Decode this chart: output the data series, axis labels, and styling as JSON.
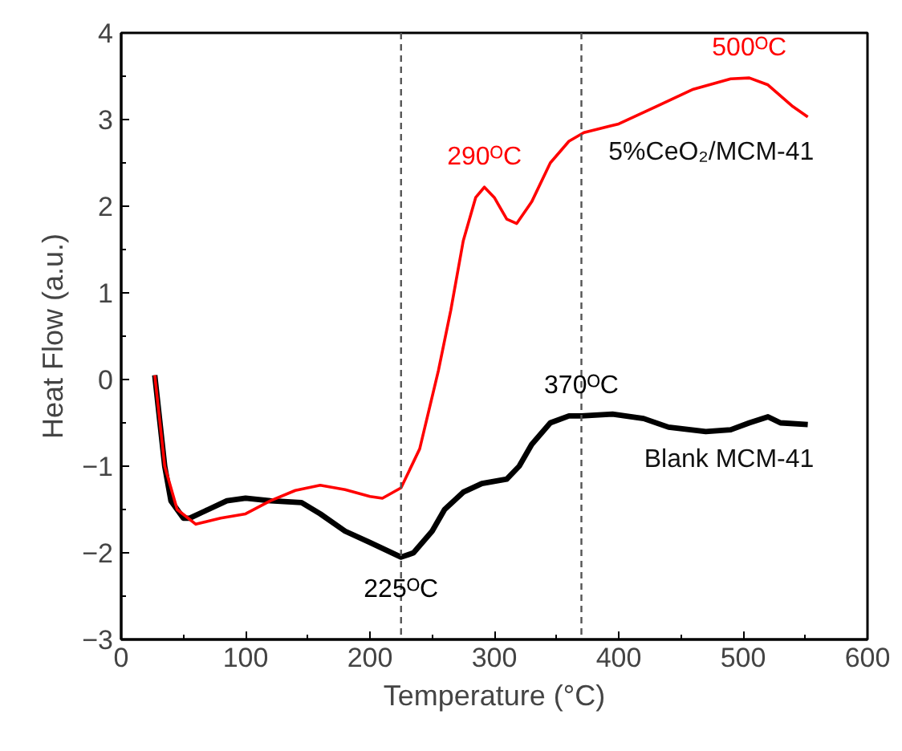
{
  "chart_data": {
    "type": "line",
    "xlabel": "Temperature (°C)",
    "ylabel": "Heat Flow (a.u.)",
    "xlim": [
      0,
      600
    ],
    "ylim": [
      -3,
      4
    ],
    "xticks": [
      0,
      100,
      200,
      300,
      400,
      500,
      600
    ],
    "yticks": [
      -3,
      -2,
      -1,
      0,
      1,
      2,
      3,
      4
    ],
    "grid": false,
    "marker": "none",
    "line_style": "solid",
    "series": [
      {
        "name": "Blank MCM-41",
        "color": "#000000",
        "x": [
          27,
          35,
          40,
          50,
          55,
          70,
          85,
          100,
          120,
          145,
          160,
          180,
          200,
          225,
          235,
          250,
          260,
          275,
          290,
          310,
          320,
          330,
          345,
          360,
          370,
          395,
          420,
          440,
          470,
          490,
          505,
          520,
          530,
          552
        ],
        "values": [
          0.05,
          -1.0,
          -1.4,
          -1.6,
          -1.6,
          -1.5,
          -1.4,
          -1.37,
          -1.4,
          -1.42,
          -1.55,
          -1.75,
          -1.88,
          -2.05,
          -2.0,
          -1.75,
          -1.5,
          -1.3,
          -1.2,
          -1.15,
          -1.0,
          -0.75,
          -0.5,
          -0.42,
          -0.42,
          -0.4,
          -0.45,
          -0.55,
          -0.6,
          -0.58,
          -0.5,
          -0.43,
          -0.5,
          -0.52
        ]
      },
      {
        "name": "5%CeO₂/MCM-41",
        "color": "#ff0000",
        "x": [
          27,
          35,
          45,
          60,
          80,
          100,
          120,
          140,
          160,
          180,
          200,
          210,
          225,
          240,
          255,
          265,
          275,
          285,
          292,
          300,
          310,
          318,
          330,
          345,
          360,
          372,
          400,
          430,
          460,
          490,
          505,
          520,
          540,
          552
        ],
        "values": [
          0.05,
          -1.0,
          -1.5,
          -1.67,
          -1.6,
          -1.55,
          -1.4,
          -1.28,
          -1.22,
          -1.27,
          -1.35,
          -1.37,
          -1.25,
          -0.8,
          0.1,
          0.8,
          1.6,
          2.1,
          2.22,
          2.1,
          1.85,
          1.8,
          2.05,
          2.5,
          2.75,
          2.85,
          2.95,
          3.15,
          3.35,
          3.47,
          3.48,
          3.4,
          3.15,
          3.03
        ]
      }
    ],
    "ref_lines": [
      {
        "axis": "x",
        "value": 225,
        "color": "#555555",
        "line_style": "dashed"
      },
      {
        "axis": "x",
        "value": 370,
        "color": "#555555",
        "line_style": "dashed"
      }
    ],
    "annotations": [
      {
        "text": "225ᴼC",
        "x": 225,
        "y": -2.05
      },
      {
        "text": "290ᴼC",
        "x": 292,
        "y": 2.22
      },
      {
        "text": "370ᴼC",
        "x": 370,
        "y": -0.42
      },
      {
        "text": "500ᴼC",
        "x": 505,
        "y": 3.48
      }
    ]
  }
}
